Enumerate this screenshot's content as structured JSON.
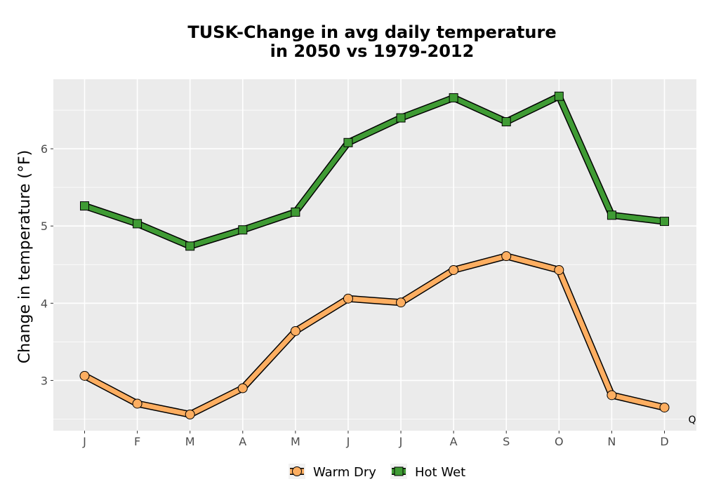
{
  "chart_data": {
    "type": "line",
    "title_line1": "TUSK-Change in avg daily temperature",
    "title_line2": "in 2050 vs 1979-2012",
    "xlabel": "",
    "ylabel": "Change in temperature (°F)",
    "categories": [
      "J",
      "F",
      "M",
      "A",
      "M",
      "J",
      "J",
      "A",
      "S",
      "O",
      "N",
      "D"
    ],
    "ylim": [
      2.35,
      6.9
    ],
    "yticks": [
      3,
      4,
      5,
      6
    ],
    "grid": true,
    "legend_position": "bottom",
    "annotation": "Q",
    "series": [
      {
        "name": "Warm Dry",
        "marker": "circle",
        "color": "#fdae61",
        "values": [
          3.06,
          2.7,
          2.56,
          2.9,
          3.64,
          4.06,
          4.01,
          4.43,
          4.61,
          4.43,
          2.81,
          2.65
        ]
      },
      {
        "name": "Hot Wet",
        "marker": "square",
        "color": "#3f9b34",
        "values": [
          5.26,
          5.03,
          4.74,
          4.95,
          5.18,
          6.08,
          6.4,
          6.66,
          6.35,
          6.68,
          5.14,
          5.06
        ]
      }
    ]
  }
}
